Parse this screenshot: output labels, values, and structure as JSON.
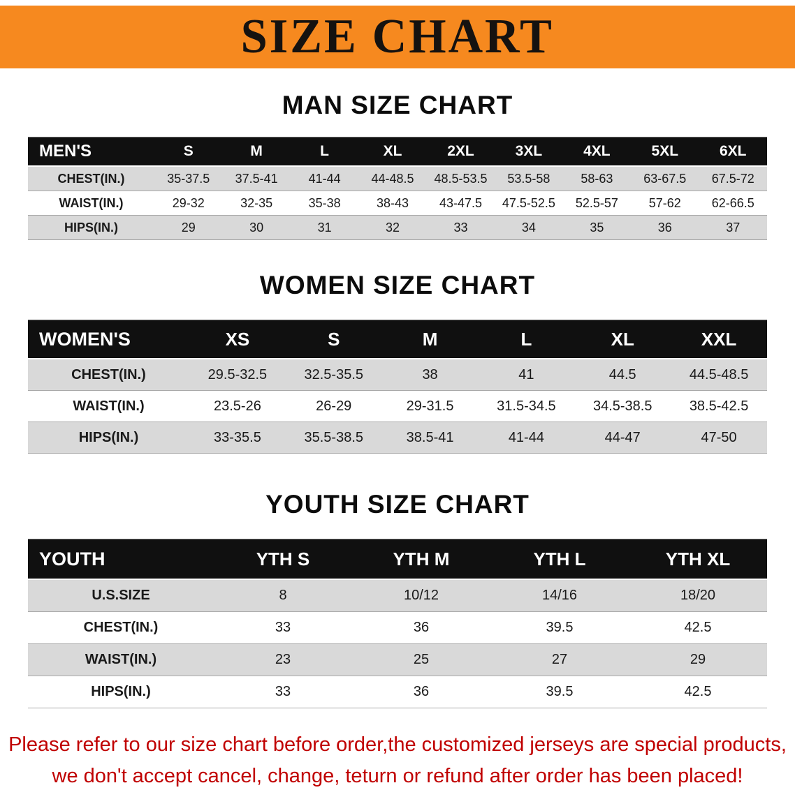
{
  "banner": {
    "title": "SIZE CHART"
  },
  "colors": {
    "banner_bg": "#f6891f",
    "table_header_bg": "#101010",
    "shaded_row_bg": "#d9d9d9",
    "disclaimer_text": "#c00000"
  },
  "sections": [
    {
      "heading": "MAN SIZE CHART",
      "header": [
        "MEN'S",
        "S",
        "M",
        "L",
        "XL",
        "2XL",
        "3XL",
        "4XL",
        "5XL",
        "6XL"
      ],
      "rows": [
        {
          "label": "CHEST(IN.)",
          "values": [
            "35-37.5",
            "37.5-41",
            "41-44",
            "44-48.5",
            "48.5-53.5",
            "53.5-58",
            "58-63",
            "63-67.5",
            "67.5-72"
          ],
          "shaded": true
        },
        {
          "label": "WAIST(IN.)",
          "values": [
            "29-32",
            "32-35",
            "35-38",
            "38-43",
            "43-47.5",
            "47.5-52.5",
            "52.5-57",
            "57-62",
            "62-66.5"
          ],
          "shaded": false
        },
        {
          "label": "HIPS(IN.)",
          "values": [
            "29",
            "30",
            "31",
            "32",
            "33",
            "34",
            "35",
            "36",
            "37"
          ],
          "shaded": true
        }
      ]
    },
    {
      "heading": "WOMEN SIZE CHART",
      "header": [
        "WOMEN'S",
        "XS",
        "S",
        "M",
        "L",
        "XL",
        "XXL"
      ],
      "rows": [
        {
          "label": "CHEST(IN.)",
          "values": [
            "29.5-32.5",
            "32.5-35.5",
            "38",
            "41",
            "44.5",
            "44.5-48.5"
          ],
          "shaded": true
        },
        {
          "label": "WAIST(IN.)",
          "values": [
            "23.5-26",
            "26-29",
            "29-31.5",
            "31.5-34.5",
            "34.5-38.5",
            "38.5-42.5"
          ],
          "shaded": false
        },
        {
          "label": "HIPS(IN.)",
          "values": [
            "33-35.5",
            "35.5-38.5",
            "38.5-41",
            "41-44",
            "44-47",
            "47-50"
          ],
          "shaded": true
        }
      ]
    },
    {
      "heading": "YOUTH SIZE CHART",
      "header": [
        "YOUTH",
        "YTH S",
        "YTH M",
        "YTH L",
        "YTH XL"
      ],
      "rows": [
        {
          "label": "U.S.SIZE",
          "values": [
            "8",
            "10/12",
            "14/16",
            "18/20"
          ],
          "shaded": true
        },
        {
          "label": "CHEST(IN.)",
          "values": [
            "33",
            "36",
            "39.5",
            "42.5"
          ],
          "shaded": false
        },
        {
          "label": "WAIST(IN.)",
          "values": [
            "23",
            "25",
            "27",
            "29"
          ],
          "shaded": true
        },
        {
          "label": "HIPS(IN.)",
          "values": [
            "33",
            "36",
            "39.5",
            "42.5"
          ],
          "shaded": false
        }
      ]
    }
  ],
  "disclaimer": {
    "line1": "Please refer to our size chart before order,the customized jerseys are special products,",
    "line2": "we don't accept cancel, change, teturn or refund after order has been placed!"
  }
}
